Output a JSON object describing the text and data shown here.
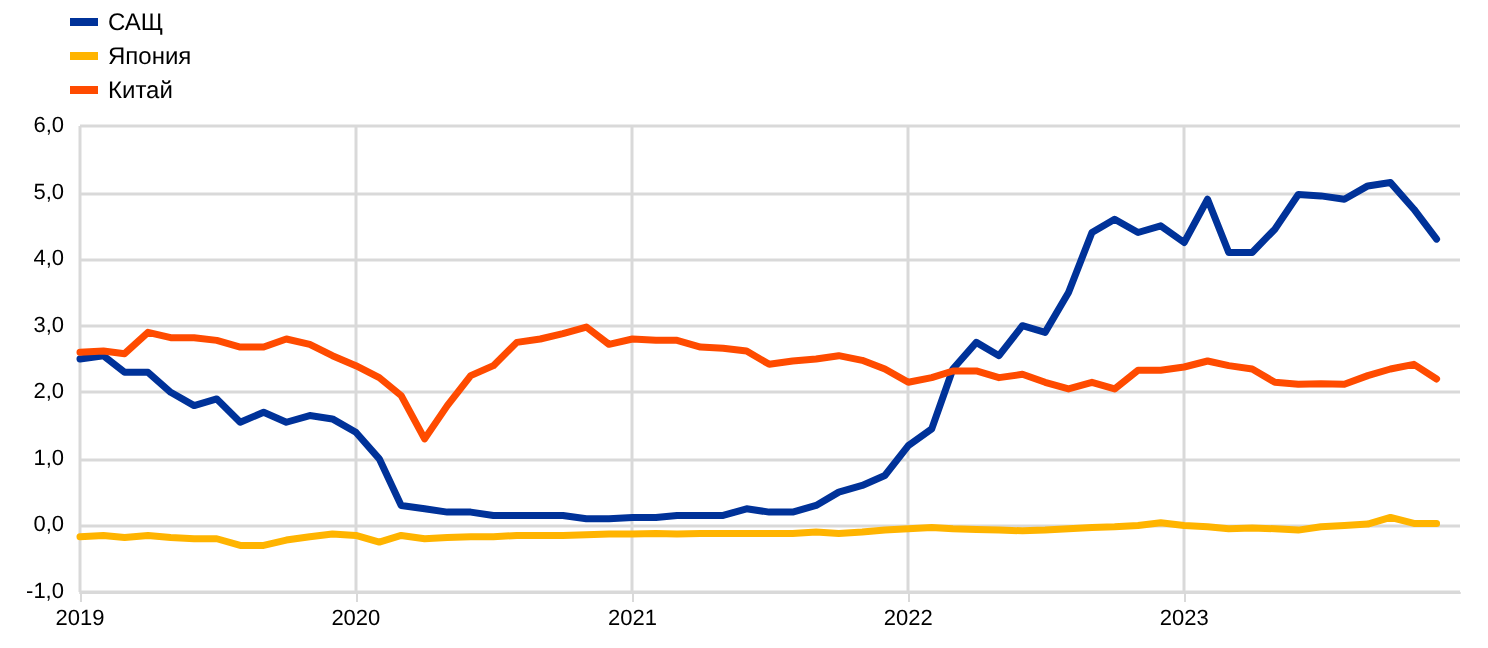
{
  "chart_data": {
    "type": "line",
    "x": [
      "2019-01",
      "2019-02",
      "2019-03",
      "2019-04",
      "2019-05",
      "2019-06",
      "2019-07",
      "2019-08",
      "2019-09",
      "2019-10",
      "2019-11",
      "2019-12",
      "2020-01",
      "2020-02",
      "2020-03",
      "2020-04",
      "2020-05",
      "2020-06",
      "2020-07",
      "2020-08",
      "2020-09",
      "2020-10",
      "2020-11",
      "2020-12",
      "2021-01",
      "2021-02",
      "2021-03",
      "2021-04",
      "2021-05",
      "2021-06",
      "2021-07",
      "2021-08",
      "2021-09",
      "2021-10",
      "2021-11",
      "2021-12",
      "2022-01",
      "2022-02",
      "2022-03",
      "2022-04",
      "2022-05",
      "2022-06",
      "2022-07",
      "2022-08",
      "2022-09",
      "2022-10",
      "2022-11",
      "2022-12",
      "2023-01",
      "2023-02",
      "2023-03",
      "2023-04",
      "2023-05",
      "2023-06",
      "2023-07",
      "2023-08",
      "2023-09",
      "2023-10",
      "2023-11",
      "2023-12"
    ],
    "series": [
      {
        "name": "САЩ",
        "color": "#003299",
        "values": [
          2.5,
          2.55,
          2.3,
          2.3,
          2.0,
          1.8,
          1.9,
          1.55,
          1.7,
          1.55,
          1.65,
          1.6,
          1.4,
          1.0,
          0.3,
          0.25,
          0.2,
          0.2,
          0.15,
          0.15,
          0.15,
          0.15,
          0.1,
          0.1,
          0.12,
          0.12,
          0.15,
          0.15,
          0.15,
          0.25,
          0.2,
          0.2,
          0.3,
          0.5,
          0.6,
          0.75,
          1.2,
          1.45,
          2.35,
          2.75,
          2.55,
          3.0,
          2.9,
          3.5,
          4.4,
          4.6,
          4.4,
          4.5,
          4.25,
          4.9,
          4.1,
          4.1,
          4.45,
          4.97,
          4.95,
          4.9,
          5.1,
          5.15,
          4.75,
          4.3
        ]
      },
      {
        "name": "Япония",
        "color": "#ffb400",
        "values": [
          -0.17,
          -0.15,
          -0.18,
          -0.15,
          -0.18,
          -0.2,
          -0.2,
          -0.3,
          -0.3,
          -0.22,
          -0.17,
          -0.13,
          -0.15,
          -0.25,
          -0.15,
          -0.2,
          -0.18,
          -0.17,
          -0.17,
          -0.15,
          -0.15,
          -0.15,
          -0.14,
          -0.13,
          -0.13,
          -0.12,
          -0.13,
          -0.12,
          -0.12,
          -0.12,
          -0.12,
          -0.12,
          -0.1,
          -0.12,
          -0.1,
          -0.07,
          -0.05,
          -0.03,
          -0.05,
          -0.06,
          -0.07,
          -0.08,
          -0.07,
          -0.05,
          -0.03,
          -0.02,
          0.0,
          0.04,
          0.0,
          -0.02,
          -0.05,
          -0.04,
          -0.05,
          -0.07,
          -0.02,
          0.0,
          0.02,
          0.12,
          0.03,
          0.03
        ]
      },
      {
        "name": "Китай",
        "color": "#ff4b00",
        "values": [
          2.6,
          2.62,
          2.58,
          2.9,
          2.82,
          2.82,
          2.78,
          2.68,
          2.68,
          2.8,
          2.72,
          2.55,
          2.4,
          2.22,
          1.95,
          1.3,
          1.8,
          2.25,
          2.4,
          2.75,
          2.8,
          2.88,
          2.98,
          2.72,
          2.8,
          2.78,
          2.78,
          2.68,
          2.66,
          2.62,
          2.42,
          2.47,
          2.5,
          2.55,
          2.48,
          2.35,
          2.15,
          2.22,
          2.32,
          2.32,
          2.22,
          2.27,
          2.15,
          2.05,
          2.15,
          2.05,
          2.33,
          2.33,
          2.38,
          2.47,
          2.4,
          2.35,
          2.15,
          2.12,
          2.13,
          2.12,
          2.25,
          2.35,
          2.42,
          2.2
        ]
      }
    ],
    "xlim": [
      "2019-01",
      "2024-01"
    ],
    "xticks": [
      {
        "value": "2019",
        "label": "2019"
      },
      {
        "value": "2020",
        "label": "2020"
      },
      {
        "value": "2021",
        "label": "2021"
      },
      {
        "value": "2022",
        "label": "2022"
      },
      {
        "value": "2023",
        "label": "2023"
      }
    ],
    "ylim": [
      -1,
      6
    ],
    "yticks": [
      {
        "value": -1,
        "label": "-1,0"
      },
      {
        "value": 0,
        "label": "0,0"
      },
      {
        "value": 1,
        "label": "1,0"
      },
      {
        "value": 2,
        "label": "2,0"
      },
      {
        "value": 3,
        "label": "3,0"
      },
      {
        "value": 4,
        "label": "4,0"
      },
      {
        "value": 5,
        "label": "5,0"
      },
      {
        "value": 6,
        "label": "6,0"
      }
    ],
    "grid": true,
    "legend": "top left",
    "marker": "none",
    "line_style": "solid"
  }
}
